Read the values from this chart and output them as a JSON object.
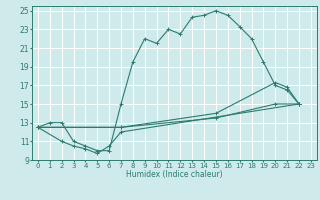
{
  "xlabel": "Humidex (Indice chaleur)",
  "bg_color": "#ceeaea",
  "grid_color": "#ffffff",
  "line_color": "#2d7b6e",
  "xlim": [
    -0.5,
    23.5
  ],
  "ylim": [
    9,
    25.5
  ],
  "xticks": [
    0,
    1,
    2,
    3,
    4,
    5,
    6,
    7,
    8,
    9,
    10,
    11,
    12,
    13,
    14,
    15,
    16,
    17,
    18,
    19,
    20,
    21,
    22,
    23
  ],
  "yticks": [
    9,
    11,
    13,
    15,
    17,
    19,
    21,
    23,
    25
  ],
  "line1_x": [
    0,
    1,
    2,
    3,
    4,
    5,
    6,
    7,
    8,
    9,
    10,
    11,
    12,
    13,
    14,
    15,
    16,
    17,
    18,
    19,
    20,
    21,
    22
  ],
  "line1_y": [
    12.5,
    13,
    13,
    11,
    10.5,
    10,
    10,
    15,
    19.5,
    22,
    21.5,
    23,
    22.5,
    24.3,
    24.5,
    25,
    24.5,
    23.3,
    22,
    19.5,
    17,
    16.5,
    15
  ],
  "line2_x": [
    0,
    2,
    3,
    4,
    5,
    6,
    7,
    22
  ],
  "line2_y": [
    12.5,
    11,
    10.5,
    10.2,
    9.7,
    10.5,
    12,
    15
  ],
  "line3_x": [
    0,
    7,
    15,
    20,
    21,
    22
  ],
  "line3_y": [
    12.5,
    12.5,
    14.0,
    17.3,
    16.8,
    15
  ],
  "line4_x": [
    0,
    7,
    15,
    20,
    22
  ],
  "line4_y": [
    12.5,
    12.5,
    13.5,
    15,
    15
  ]
}
